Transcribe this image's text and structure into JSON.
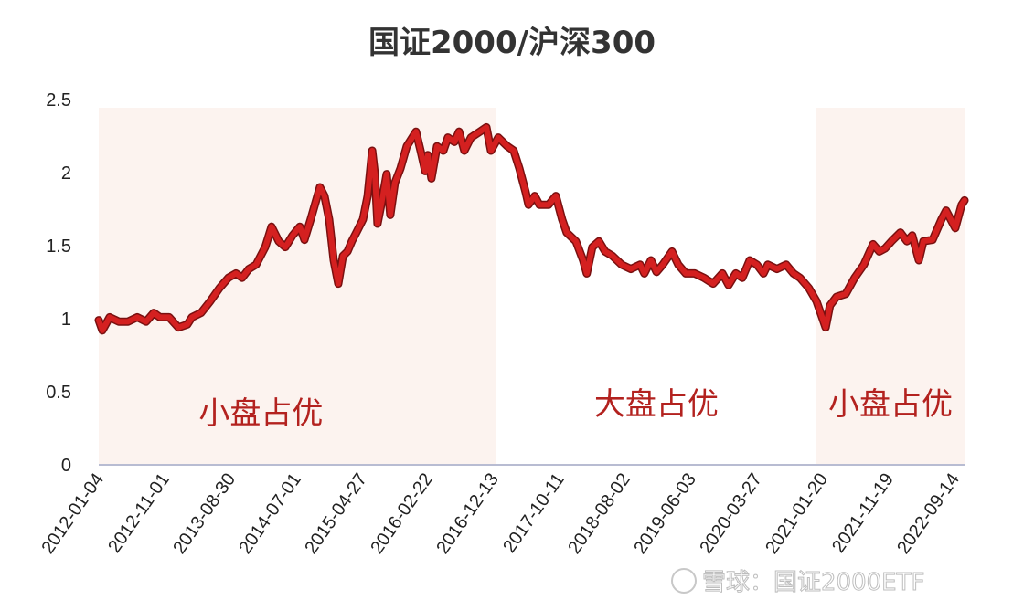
{
  "chart_data": {
    "type": "line",
    "title": "国证2000/沪深300",
    "xlabel": "",
    "ylabel": "",
    "ylim": [
      0,
      2.5
    ],
    "yticks": [
      "0",
      "0.5",
      "1",
      "1.5",
      "2",
      "2.5"
    ],
    "ytick_values": [
      0,
      0.5,
      1,
      1.5,
      2,
      2.5
    ],
    "x_unit": "trading-day index",
    "xlim": [
      0,
      2631
    ],
    "xtick_labels": [
      "2012-01-04",
      "2012-11-01",
      "2013-08-30",
      "2014-07-01",
      "2015-04-27",
      "2016-02-22",
      "2016-12-13",
      "2017-10-11",
      "2018-08-02",
      "2019-06-03",
      "2020-03-27",
      "2021-01-20",
      "2021-11-19",
      "2022-09-14"
    ],
    "xtick_days": [
      0,
      200,
      400,
      600,
      800,
      1000,
      1200,
      1400,
      1600,
      1800,
      2000,
      2200,
      2400,
      2600
    ],
    "grid": false,
    "series": [
      {
        "name": "国证2000/沪深300",
        "color": "#d42020",
        "points": [
          [
            0,
            0.99
          ],
          [
            11,
            0.92
          ],
          [
            33,
            1.01
          ],
          [
            61,
            0.98
          ],
          [
            89,
            0.98
          ],
          [
            117,
            1.01
          ],
          [
            144,
            0.98
          ],
          [
            167,
            1.04
          ],
          [
            186,
            1.01
          ],
          [
            214,
            1.01
          ],
          [
            242,
            0.94
          ],
          [
            269,
            0.96
          ],
          [
            283,
            1.01
          ],
          [
            311,
            1.04
          ],
          [
            339,
            1.12
          ],
          [
            367,
            1.21
          ],
          [
            394,
            1.28
          ],
          [
            417,
            1.31
          ],
          [
            436,
            1.28
          ],
          [
            456,
            1.34
          ],
          [
            478,
            1.37
          ],
          [
            506,
            1.49
          ],
          [
            525,
            1.63
          ],
          [
            547,
            1.53
          ],
          [
            567,
            1.49
          ],
          [
            589,
            1.57
          ],
          [
            611,
            1.63
          ],
          [
            625,
            1.54
          ],
          [
            644,
            1.68
          ],
          [
            672,
            1.9
          ],
          [
            686,
            1.84
          ],
          [
            700,
            1.68
          ],
          [
            714,
            1.4
          ],
          [
            728,
            1.24
          ],
          [
            742,
            1.43
          ],
          [
            756,
            1.46
          ],
          [
            769,
            1.53
          ],
          [
            783,
            1.59
          ],
          [
            803,
            1.68
          ],
          [
            817,
            1.84
          ],
          [
            831,
            2.15
          ],
          [
            839,
            1.99
          ],
          [
            847,
            1.65
          ],
          [
            861,
            1.81
          ],
          [
            875,
            1.99
          ],
          [
            886,
            1.71
          ],
          [
            900,
            1.93
          ],
          [
            917,
            2.03
          ],
          [
            936,
            2.18
          ],
          [
            964,
            2.28
          ],
          [
            978,
            2.15
          ],
          [
            992,
            2.01
          ],
          [
            1000,
            2.12
          ],
          [
            1011,
            1.96
          ],
          [
            1028,
            2.18
          ],
          [
            1047,
            2.15
          ],
          [
            1061,
            2.24
          ],
          [
            1081,
            2.21
          ],
          [
            1095,
            2.28
          ],
          [
            1111,
            2.15
          ],
          [
            1131,
            2.24
          ],
          [
            1158,
            2.28
          ],
          [
            1178,
            2.31
          ],
          [
            1192,
            2.15
          ],
          [
            1214,
            2.24
          ],
          [
            1242,
            2.18
          ],
          [
            1261,
            2.15
          ],
          [
            1278,
            2.03
          ],
          [
            1297,
            1.87
          ],
          [
            1306,
            1.78
          ],
          [
            1325,
            1.84
          ],
          [
            1339,
            1.78
          ],
          [
            1367,
            1.78
          ],
          [
            1389,
            1.84
          ],
          [
            1408,
            1.68
          ],
          [
            1422,
            1.59
          ],
          [
            1450,
            1.53
          ],
          [
            1472,
            1.4
          ],
          [
            1483,
            1.31
          ],
          [
            1500,
            1.49
          ],
          [
            1520,
            1.53
          ],
          [
            1539,
            1.46
          ],
          [
            1561,
            1.43
          ],
          [
            1589,
            1.37
          ],
          [
            1617,
            1.34
          ],
          [
            1645,
            1.37
          ],
          [
            1658,
            1.31
          ],
          [
            1678,
            1.4
          ],
          [
            1695,
            1.32
          ],
          [
            1714,
            1.37
          ],
          [
            1742,
            1.46
          ],
          [
            1761,
            1.37
          ],
          [
            1784,
            1.31
          ],
          [
            1811,
            1.31
          ],
          [
            1839,
            1.28
          ],
          [
            1867,
            1.24
          ],
          [
            1895,
            1.31
          ],
          [
            1914,
            1.23
          ],
          [
            1936,
            1.31
          ],
          [
            1956,
            1.28
          ],
          [
            1978,
            1.4
          ],
          [
            2000,
            1.37
          ],
          [
            2020,
            1.31
          ],
          [
            2033,
            1.37
          ],
          [
            2061,
            1.34
          ],
          [
            2089,
            1.37
          ],
          [
            2111,
            1.31
          ],
          [
            2131,
            1.28
          ],
          [
            2158,
            1.21
          ],
          [
            2181,
            1.12
          ],
          [
            2195,
            1.03
          ],
          [
            2209,
            0.94
          ],
          [
            2222,
            1.09
          ],
          [
            2242,
            1.15
          ],
          [
            2270,
            1.17
          ],
          [
            2297,
            1.28
          ],
          [
            2325,
            1.37
          ],
          [
            2353,
            1.51
          ],
          [
            2372,
            1.46
          ],
          [
            2389,
            1.48
          ],
          [
            2409,
            1.53
          ],
          [
            2436,
            1.59
          ],
          [
            2456,
            1.53
          ],
          [
            2472,
            1.57
          ],
          [
            2492,
            1.4
          ],
          [
            2506,
            1.53
          ],
          [
            2534,
            1.54
          ],
          [
            2561,
            1.68
          ],
          [
            2575,
            1.74
          ],
          [
            2603,
            1.62
          ],
          [
            2622,
            1.78
          ],
          [
            2631,
            1.81
          ]
        ]
      }
    ],
    "regions": [
      {
        "label": "小盘占优",
        "start": 0,
        "end": 1208,
        "color": "#fcf3ef"
      },
      {
        "label": "大盘占优",
        "start": 1208,
        "end": 2181,
        "color": "#ffffff"
      },
      {
        "label": "小盘占优",
        "start": 2181,
        "end": 2631,
        "color": "#fcf3ef"
      }
    ],
    "annotation_watermark": "雪球：国证2000ETF"
  }
}
